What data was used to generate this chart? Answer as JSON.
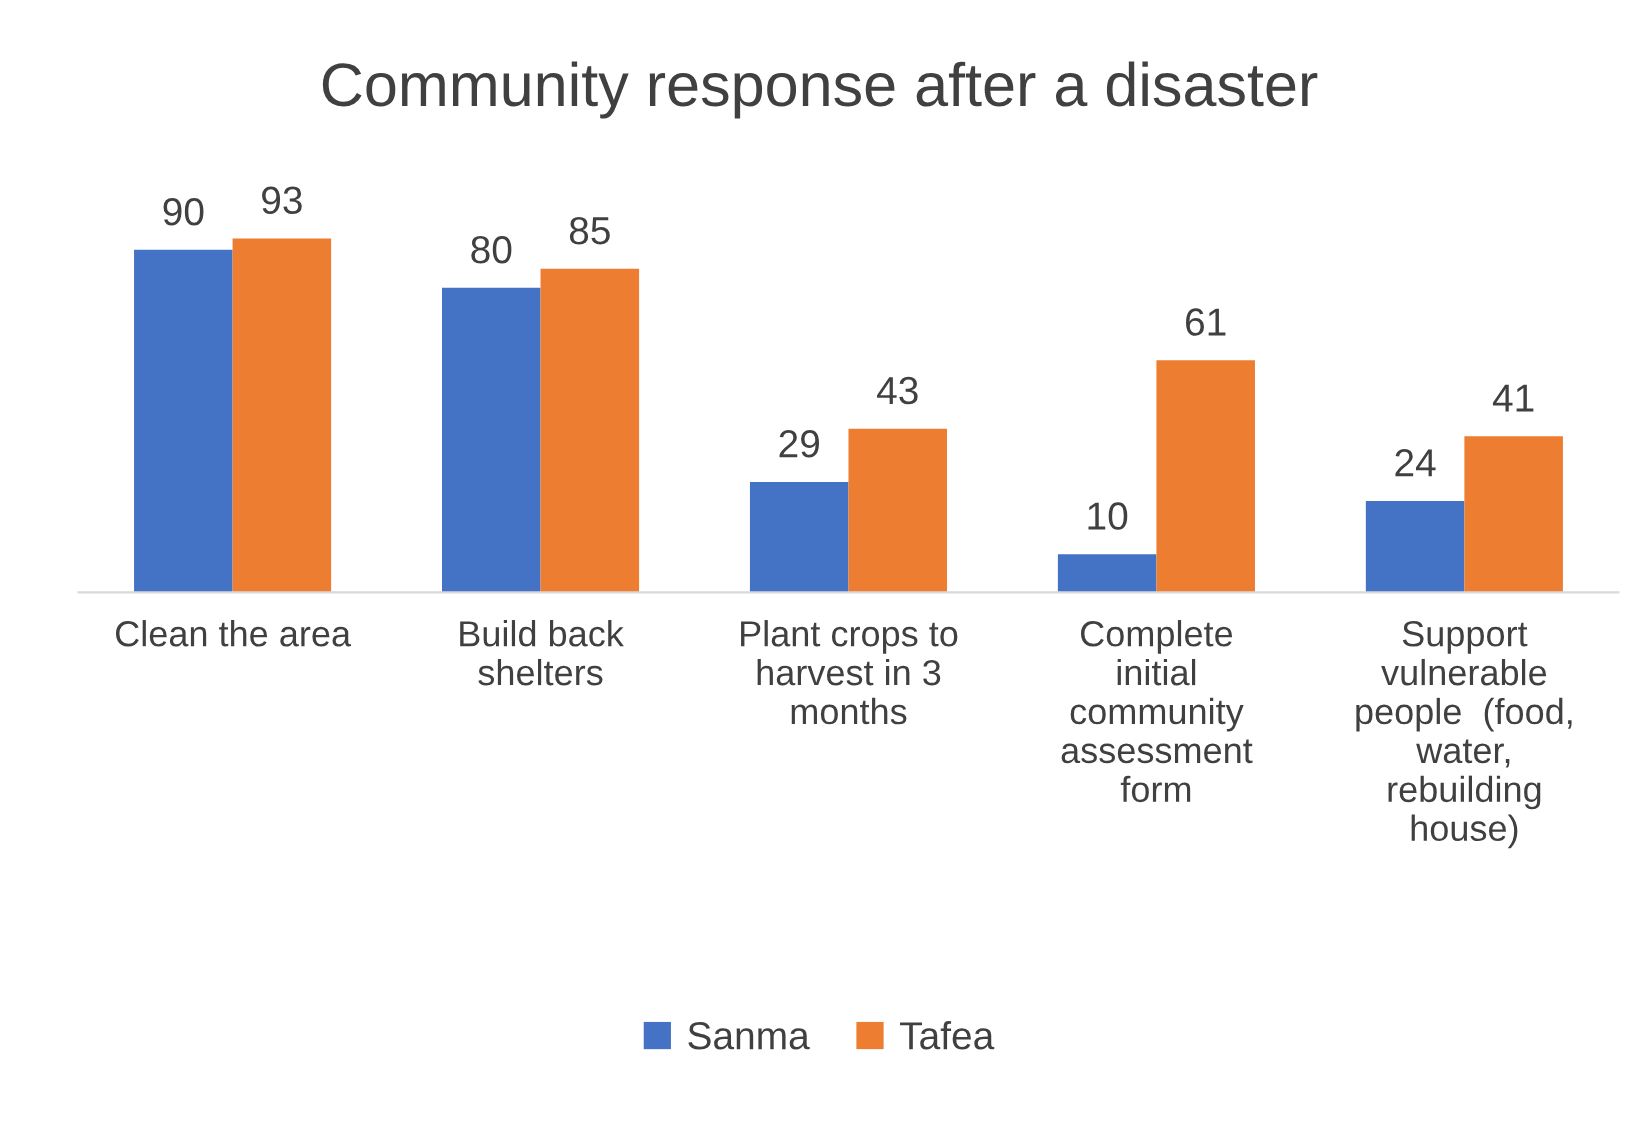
{
  "chart_data": {
    "type": "bar",
    "title": "Community response after a disaster",
    "categories": [
      "Clean the area",
      "Build back shelters",
      "Plant crops to harvest in 3 months",
      "Complete initial community assessment form",
      "Support vulnerable people  (food, water, rebuilding house)"
    ],
    "series": [
      {
        "name": "Sanma",
        "color": "#4472c4",
        "values": [
          90,
          80,
          29,
          10,
          24
        ]
      },
      {
        "name": "Tafea",
        "color": "#ed7d31",
        "values": [
          93,
          85,
          43,
          61,
          41
        ]
      }
    ],
    "data_labels": true,
    "grid": false,
    "legend": "bottom"
  }
}
